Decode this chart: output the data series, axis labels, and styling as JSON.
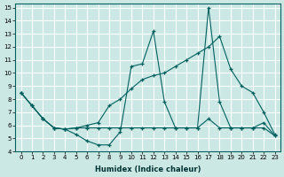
{
  "xlabel": "Humidex (Indice chaleur)",
  "bg_color": "#cce8e4",
  "grid_color": "#ffffff",
  "line_color": "#006060",
  "xlim": [
    -0.5,
    23.5
  ],
  "ylim": [
    4,
    15.3
  ],
  "xticks": [
    0,
    1,
    2,
    3,
    4,
    5,
    6,
    7,
    8,
    9,
    10,
    11,
    12,
    13,
    14,
    15,
    16,
    17,
    18,
    19,
    20,
    21,
    22,
    23
  ],
  "yticks": [
    4,
    5,
    6,
    7,
    8,
    9,
    10,
    11,
    12,
    13,
    14,
    15
  ],
  "series1_x": [
    0,
    1,
    2,
    3,
    4,
    5,
    6,
    7,
    8,
    9,
    10,
    11,
    12,
    13,
    14,
    15,
    16,
    17,
    18,
    19,
    20,
    21,
    22,
    23
  ],
  "series1_y": [
    8.5,
    7.5,
    6.5,
    5.8,
    5.7,
    5.3,
    4.8,
    4.5,
    4.5,
    5.5,
    10.5,
    10.7,
    13.2,
    7.8,
    5.8,
    5.8,
    5.8,
    15.0,
    7.8,
    5.8,
    5.8,
    5.8,
    6.2,
    5.2
  ],
  "series2_x": [
    0,
    1,
    2,
    3,
    4,
    5,
    6,
    7,
    8,
    9,
    10,
    11,
    12,
    13,
    14,
    15,
    16,
    17,
    18,
    19,
    20,
    21,
    22,
    23
  ],
  "series2_y": [
    8.5,
    7.5,
    6.5,
    5.8,
    5.7,
    5.8,
    6.0,
    6.2,
    7.5,
    8.0,
    8.8,
    9.5,
    9.8,
    10.0,
    10.5,
    11.0,
    11.5,
    12.0,
    12.8,
    10.3,
    9.0,
    8.5,
    7.0,
    5.3
  ],
  "series3_x": [
    0,
    1,
    2,
    3,
    4,
    5,
    6,
    7,
    8,
    9,
    10,
    11,
    12,
    13,
    14,
    15,
    16,
    17,
    18,
    19,
    20,
    21,
    22,
    23
  ],
  "series3_y": [
    8.5,
    7.5,
    6.5,
    5.8,
    5.7,
    5.8,
    5.8,
    5.8,
    5.8,
    5.8,
    5.8,
    5.8,
    5.8,
    5.8,
    5.8,
    5.8,
    5.8,
    6.5,
    5.8,
    5.8,
    5.8,
    5.8,
    5.8,
    5.2
  ]
}
